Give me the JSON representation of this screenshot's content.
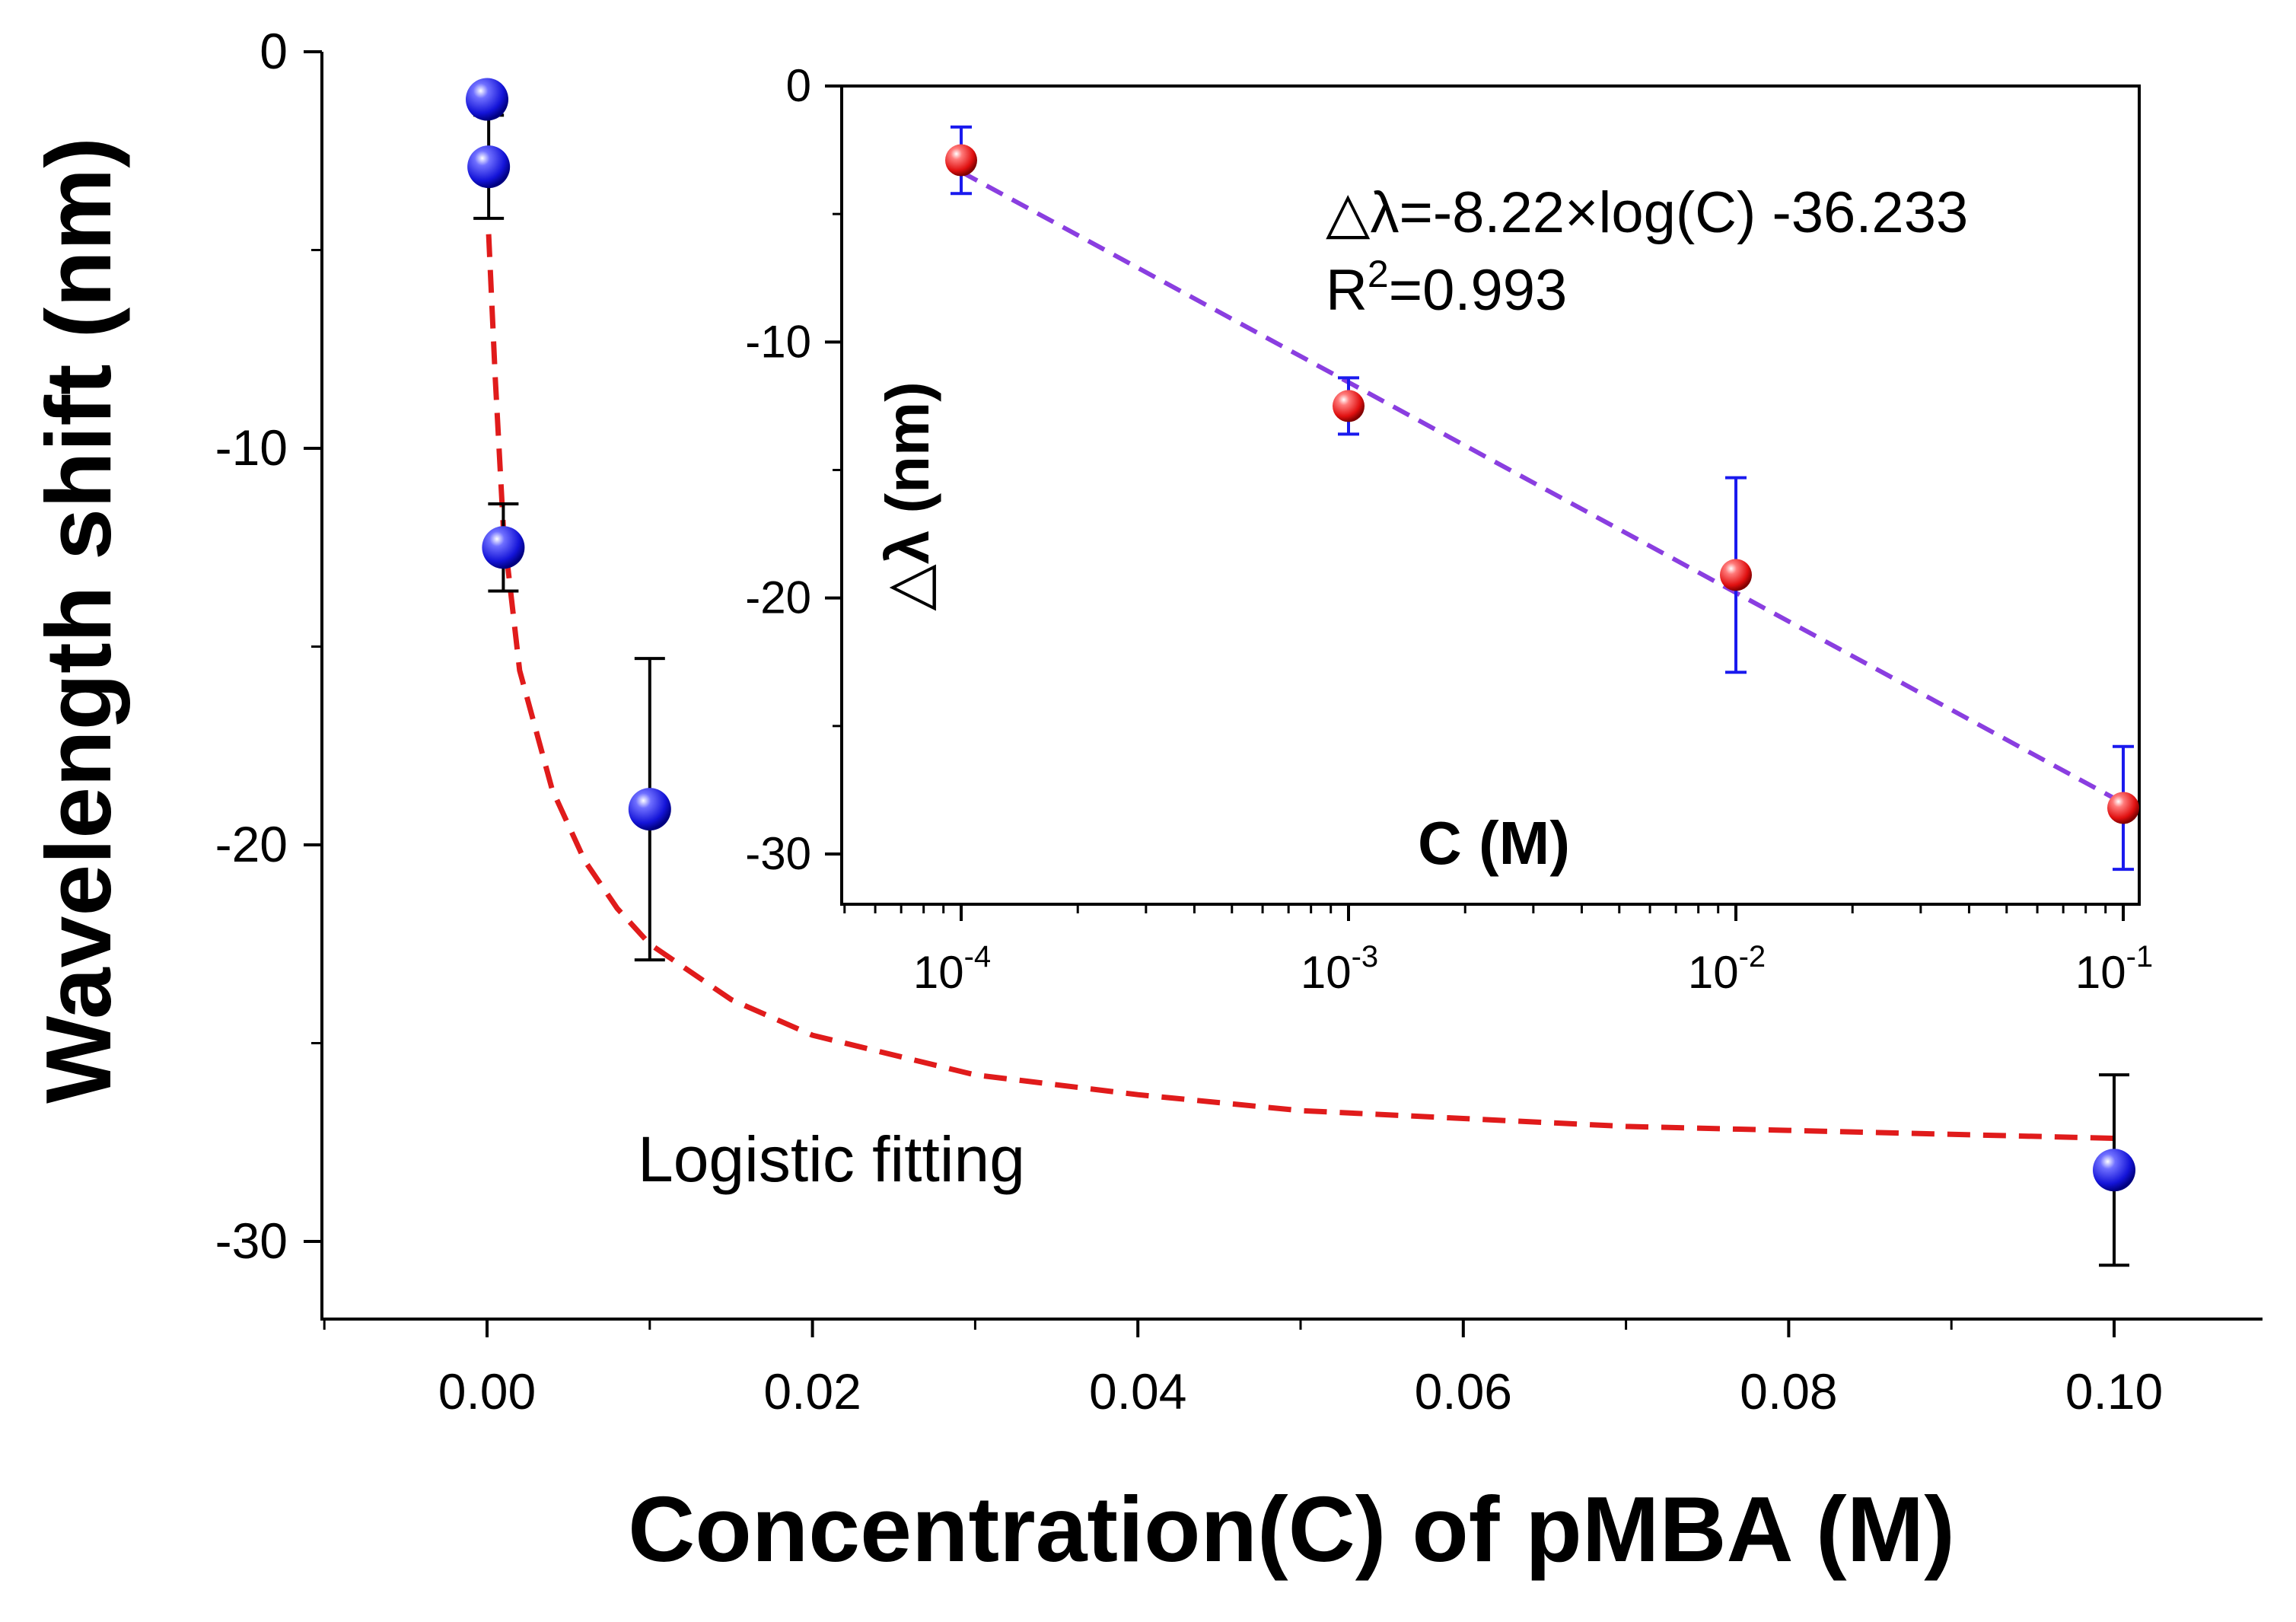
{
  "chart_data": [
    {
      "type": "scatter",
      "name": "main",
      "xlabel": "Concentration(C) of pMBA (M)",
      "ylabel": "Wavelength shift (nm)",
      "xlim": [
        -0.01,
        0.11
      ],
      "ylim": [
        -32,
        0
      ],
      "xticks": [
        0.0,
        0.02,
        0.04,
        0.06,
        0.08,
        0.1
      ],
      "xtick_labels": [
        "0.00",
        "0.02",
        "0.04",
        "0.06",
        "0.08",
        "0.10"
      ],
      "yticks": [
        0,
        -10,
        -20,
        -30
      ],
      "ytick_labels": [
        "0",
        "-10",
        "-20",
        "-30"
      ],
      "points": [
        {
          "x": 0.0,
          "y": -1.2,
          "err": 0.0
        },
        {
          "x": 0.0001,
          "y": -2.9,
          "err": 1.3
        },
        {
          "x": 0.001,
          "y": -12.5,
          "err": 1.1
        },
        {
          "x": 0.01,
          "y": -19.1,
          "err": 3.8
        },
        {
          "x": 0.1,
          "y": -28.2,
          "err": 2.4
        }
      ],
      "marker_color": "#1a1aee",
      "fit": {
        "label": "Logistic fitting",
        "color": "#e01b1b",
        "x": [
          0.0001,
          0.0005,
          0.001,
          0.002,
          0.004,
          0.006,
          0.008,
          0.01,
          0.015,
          0.02,
          0.03,
          0.04,
          0.05,
          0.06,
          0.07,
          0.08,
          0.09,
          0.1
        ],
        "y": [
          -4.6,
          -8.2,
          -12.0,
          -15.6,
          -18.6,
          -20.4,
          -21.6,
          -22.5,
          -23.9,
          -24.8,
          -25.8,
          -26.3,
          -26.7,
          -26.9,
          -27.1,
          -27.2,
          -27.3,
          -27.4
        ]
      }
    },
    {
      "type": "scatter",
      "name": "inset",
      "xscale": "log",
      "xlabel": "C (M)",
      "ylabel": "△λ (nm)",
      "xlim": [
        5e-05,
        0.11
      ],
      "ylim": [
        -32,
        0
      ],
      "xticks": [
        0.0001,
        0.001,
        0.01,
        0.1
      ],
      "xtick_base": "10",
      "xtick_exponents": [
        "-4",
        "-3",
        "-2",
        "-1"
      ],
      "yticks": [
        0,
        -10,
        -20,
        -30
      ],
      "ytick_labels": [
        "0",
        "-10",
        "-20",
        "-30"
      ],
      "points": [
        {
          "x": 0.0001,
          "y": -2.9,
          "err": 1.3
        },
        {
          "x": 0.001,
          "y": -12.5,
          "err": 1.1
        },
        {
          "x": 0.01,
          "y": -19.1,
          "err": 3.8
        },
        {
          "x": 0.1,
          "y": -28.2,
          "err": 2.4
        }
      ],
      "marker_color": "#e01b1b",
      "errorbar_color": "#1a1aee",
      "fit": {
        "type": "linear-log",
        "slope": -8.22,
        "intercept": -36.233,
        "color": "#8a3ee0"
      },
      "equation": "△λ=-8.22×log(C) -36.233",
      "r2_prefix": "R",
      "r2_exponent": "2",
      "r2_value": "=0.993"
    }
  ]
}
